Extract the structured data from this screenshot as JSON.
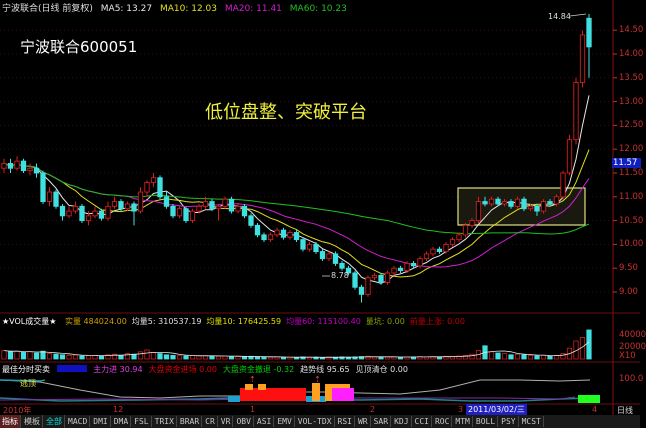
{
  "header": {
    "stock_title": "宁波联合(日线 前复权)",
    "ma5": "MA5: 13.27",
    "ma10": "MA10: 12.03",
    "ma20": "MA20: 11.41",
    "ma60": "MA60: 10.23"
  },
  "overlay": {
    "stock_name": "宁波联合600051",
    "caption": "低位盘整、突破平台",
    "high_label": "14.84",
    "low_label": "8.78"
  },
  "price_axis": {
    "ticks": [
      "14.50",
      "14.00",
      "13.50",
      "13.00",
      "12.50",
      "12.00",
      "11.50",
      "11.00",
      "10.50",
      "10.00",
      "9.50",
      "9.00"
    ],
    "current_price": "11.57"
  },
  "volume_panel": {
    "title": "★VOL成交量★",
    "items": [
      {
        "label": "实量",
        "value": "484024.00",
        "color": "#d0a000"
      },
      {
        "label": "均量5:",
        "value": "310537.19",
        "color": "#e0e0e0"
      },
      {
        "label": "均量10:",
        "value": "176425.59",
        "color": "#e0e000"
      },
      {
        "label": "均量60:",
        "value": "115100.40",
        "color": "#c000c0"
      },
      {
        "label": "量坑:",
        "value": "0.00",
        "color": "#80a000"
      },
      {
        "label": "前量上涨:",
        "value": "0.00",
        "color": "#c00000"
      }
    ],
    "ticks": [
      "40000",
      "20000",
      "X10"
    ]
  },
  "indicator_panel": {
    "title": "最佳分时买卖",
    "items": [
      {
        "label": "主力进",
        "value": "30.94",
        "color": "#e040e0"
      },
      {
        "label": "大盘资金进场",
        "value": "0.00",
        "color": "#e00000"
      },
      {
        "label": "大盘资金撤退",
        "value": "-0.32",
        "color": "#00d000"
      },
      {
        "label": "趋势线",
        "value": "95.65",
        "color": "#e0e0e0"
      },
      {
        "label": "见顶清仓",
        "value": "0.00",
        "color": "#e0e0e0"
      }
    ],
    "escape_label": "逃顶",
    "tick": "100.0"
  },
  "time_axis": {
    "labels": [
      "2010年",
      "12",
      "1",
      "2",
      "3",
      "4"
    ],
    "cursor_date": "2011/03/02/三",
    "period": "日线"
  },
  "tabs": [
    "指标",
    "模板",
    "全部",
    "MACD",
    "DMI",
    "DMA",
    "FSL",
    "TRIX",
    "BRAR",
    "CR",
    "VR",
    "OBV",
    "ASI",
    "EMV",
    "VOL-TDX",
    "RSI",
    "WR",
    "SAR",
    "KDJ",
    "CCI",
    "ROC",
    "MTM",
    "BOLL",
    "PSY",
    "MCST"
  ],
  "colors": {
    "up": "#d02020",
    "down": "#40e0e0",
    "ma5": "#e8e8e8",
    "ma10": "#e0e020",
    "ma20": "#d020d0",
    "ma60": "#20c020",
    "highlight_box": "#e0e080"
  },
  "chart_data": {
    "type": "candlestick",
    "ylim": [
      8.6,
      14.9
    ],
    "moving_averages": [
      5,
      10,
      20,
      60
    ],
    "candles_ohlc": [
      [
        11.6,
        11.8,
        11.5,
        11.7
      ],
      [
        11.7,
        11.8,
        11.5,
        11.6
      ],
      [
        11.6,
        11.85,
        11.55,
        11.75
      ],
      [
        11.75,
        11.8,
        11.5,
        11.55
      ],
      [
        11.55,
        11.7,
        11.45,
        11.6
      ],
      [
        11.6,
        11.7,
        11.4,
        11.5
      ],
      [
        11.5,
        11.55,
        10.85,
        10.9
      ],
      [
        10.9,
        11.2,
        10.8,
        11.1
      ],
      [
        11.1,
        11.15,
        10.75,
        10.8
      ],
      [
        10.8,
        10.85,
        10.5,
        10.6
      ],
      [
        10.6,
        10.8,
        10.55,
        10.7
      ],
      [
        10.7,
        10.9,
        10.65,
        10.8
      ],
      [
        10.8,
        10.85,
        10.45,
        10.5
      ],
      [
        10.5,
        10.7,
        10.4,
        10.6
      ],
      [
        10.6,
        10.8,
        10.55,
        10.7
      ],
      [
        10.7,
        10.75,
        10.5,
        10.55
      ],
      [
        10.55,
        10.9,
        10.5,
        10.8
      ],
      [
        10.8,
        11.0,
        10.75,
        10.9
      ],
      [
        10.9,
        10.95,
        10.7,
        10.75
      ],
      [
        10.75,
        10.9,
        10.7,
        10.85
      ],
      [
        10.85,
        10.9,
        10.4,
        10.7
      ],
      [
        10.7,
        11.2,
        10.65,
        11.1
      ],
      [
        11.1,
        11.35,
        11.0,
        11.3
      ],
      [
        11.3,
        11.5,
        11.2,
        11.4
      ],
      [
        11.4,
        11.45,
        10.95,
        11.0
      ],
      [
        11.0,
        11.1,
        10.75,
        10.8
      ],
      [
        10.8,
        10.85,
        10.55,
        10.6
      ],
      [
        10.6,
        10.8,
        10.55,
        10.75
      ],
      [
        10.75,
        10.8,
        10.45,
        10.5
      ],
      [
        10.5,
        10.75,
        10.45,
        10.7
      ],
      [
        10.7,
        10.85,
        10.65,
        10.8
      ],
      [
        10.8,
        11.0,
        10.75,
        10.9
      ],
      [
        10.9,
        10.95,
        10.7,
        10.75
      ],
      [
        10.75,
        10.85,
        10.5,
        10.8
      ],
      [
        10.8,
        11.0,
        10.75,
        10.95
      ],
      [
        10.95,
        11.0,
        10.65,
        10.7
      ],
      [
        10.7,
        10.85,
        10.65,
        10.8
      ],
      [
        10.8,
        10.85,
        10.55,
        10.6
      ],
      [
        10.6,
        10.65,
        10.35,
        10.4
      ],
      [
        10.4,
        10.45,
        10.15,
        10.2
      ],
      [
        10.2,
        10.25,
        10.05,
        10.1
      ],
      [
        10.1,
        10.25,
        10.05,
        10.2
      ],
      [
        10.2,
        10.35,
        10.15,
        10.3
      ],
      [
        10.3,
        10.35,
        10.1,
        10.15
      ],
      [
        10.15,
        10.3,
        10.1,
        10.25
      ],
      [
        10.25,
        10.3,
        10.05,
        10.1
      ],
      [
        10.1,
        10.15,
        9.85,
        9.9
      ],
      [
        9.9,
        10.05,
        9.85,
        10.0
      ],
      [
        10.0,
        10.05,
        9.8,
        9.85
      ],
      [
        9.85,
        9.9,
        9.65,
        9.7
      ],
      [
        9.7,
        9.85,
        9.65,
        9.8
      ],
      [
        9.8,
        9.85,
        9.55,
        9.6
      ],
      [
        9.6,
        9.65,
        9.45,
        9.5
      ],
      [
        9.5,
        9.55,
        9.35,
        9.4
      ],
      [
        9.4,
        9.45,
        9.05,
        9.1
      ],
      [
        9.1,
        9.15,
        8.78,
        8.95
      ],
      [
        8.95,
        9.35,
        8.9,
        9.3
      ],
      [
        9.3,
        9.4,
        9.25,
        9.35
      ],
      [
        9.35,
        9.4,
        9.15,
        9.2
      ],
      [
        9.2,
        9.45,
        9.15,
        9.4
      ],
      [
        9.4,
        9.55,
        9.35,
        9.5
      ],
      [
        9.5,
        9.55,
        9.4,
        9.45
      ],
      [
        9.45,
        9.65,
        9.4,
        9.6
      ],
      [
        9.6,
        9.65,
        9.5,
        9.55
      ],
      [
        9.55,
        9.75,
        9.5,
        9.7
      ],
      [
        9.7,
        9.85,
        9.65,
        9.8
      ],
      [
        9.8,
        9.95,
        9.75,
        9.9
      ],
      [
        9.9,
        9.95,
        9.8,
        9.85
      ],
      [
        9.85,
        10.05,
        9.8,
        10.0
      ],
      [
        10.0,
        10.15,
        9.95,
        10.1
      ],
      [
        10.1,
        10.25,
        10.05,
        10.2
      ],
      [
        10.2,
        10.45,
        10.15,
        10.4
      ],
      [
        10.4,
        10.55,
        10.35,
        10.5
      ],
      [
        10.5,
        11.0,
        10.45,
        10.9
      ],
      [
        10.9,
        11.0,
        10.8,
        10.85
      ],
      [
        10.85,
        11.0,
        10.8,
        10.95
      ],
      [
        10.95,
        11.0,
        10.8,
        10.85
      ],
      [
        10.85,
        10.95,
        10.8,
        10.9
      ],
      [
        10.9,
        10.95,
        10.75,
        10.8
      ],
      [
        10.8,
        11.0,
        10.75,
        10.95
      ],
      [
        10.95,
        11.0,
        10.7,
        10.75
      ],
      [
        10.75,
        10.85,
        10.7,
        10.8
      ],
      [
        10.8,
        10.85,
        10.6,
        10.7
      ],
      [
        10.7,
        10.95,
        10.65,
        10.9
      ],
      [
        10.9,
        10.95,
        10.8,
        10.85
      ],
      [
        10.85,
        11.05,
        10.8,
        11.0
      ],
      [
        11.0,
        11.55,
        10.95,
        11.5
      ],
      [
        11.5,
        12.3,
        11.45,
        12.2
      ],
      [
        12.2,
        13.5,
        12.1,
        13.4
      ],
      [
        13.4,
        14.5,
        13.3,
        14.4
      ],
      [
        14.75,
        14.84,
        13.5,
        14.15
      ]
    ],
    "volume_x10": [
      14000,
      12000,
      13000,
      11000,
      12000,
      10000,
      13000,
      9000,
      8000,
      7000,
      6000,
      6500,
      5000,
      5500,
      6000,
      5000,
      7000,
      8000,
      6000,
      9000,
      8000,
      12000,
      15000,
      11000,
      9000,
      7000,
      6000,
      5500,
      5000,
      6000,
      5000,
      5500,
      5000,
      4500,
      5000,
      4000,
      4500,
      4000,
      4500,
      3500,
      3500,
      3000,
      3500,
      3000,
      3000,
      2500,
      3500,
      3000,
      3000,
      2500,
      3000,
      3000,
      3500,
      3000,
      3500,
      4000,
      4500,
      3500,
      3000,
      3500,
      3500,
      3000,
      3500,
      3500,
      4000,
      3500,
      4000,
      3500,
      4500,
      4000,
      5000,
      6000,
      8000,
      14000,
      22000,
      12000,
      10000,
      9000,
      7000,
      8000,
      7000,
      6000,
      5500,
      6000,
      5000,
      6000,
      9000,
      18000,
      30000,
      36000,
      48402
    ]
  }
}
